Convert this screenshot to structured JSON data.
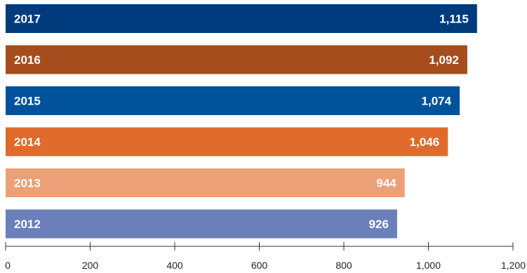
{
  "chart_data": {
    "type": "bar",
    "orientation": "horizontal",
    "categories": [
      "2017",
      "2016",
      "2015",
      "2014",
      "2013",
      "2012"
    ],
    "values": [
      1115,
      1092,
      1074,
      1046,
      944,
      926
    ],
    "value_labels": [
      "1,115",
      "1,092",
      "1,074",
      "1,046",
      "944",
      "926"
    ],
    "bar_colors": [
      "#003C7D",
      "#A64D1E",
      "#00529B",
      "#E06A2C",
      "#EBA077",
      "#6B7FBB"
    ],
    "x_ticks": [
      0,
      200,
      400,
      600,
      800,
      1000,
      1200
    ],
    "x_tick_labels": [
      "0",
      "200",
      "400",
      "600",
      "800",
      "1,000",
      "1,200"
    ],
    "xlim": [
      0,
      1200
    ],
    "title": "",
    "xlabel": "",
    "ylabel": "",
    "grid": false,
    "legend": "none"
  }
}
